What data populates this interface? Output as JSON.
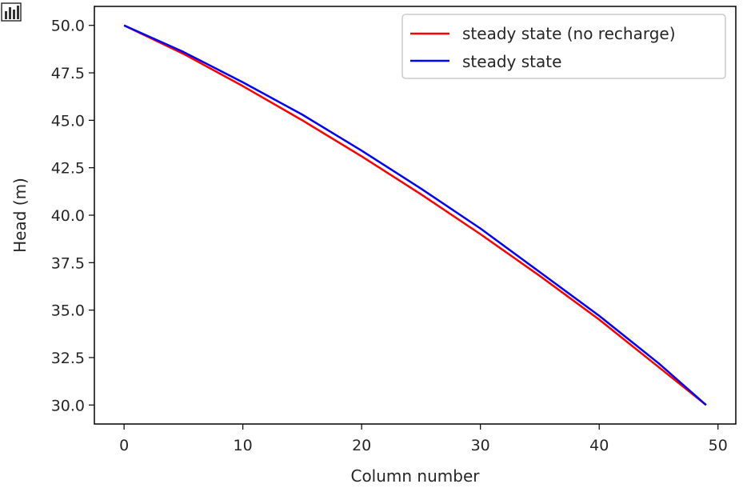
{
  "toolbar": {
    "icon": "bar-chart-icon"
  },
  "chart_data": {
    "type": "line",
    "title": "",
    "xlabel": "Column number",
    "ylabel": "Head (m)",
    "xlim": [
      -2.5,
      51.5
    ],
    "ylim": [
      29.0,
      51.0
    ],
    "xticks": [
      0,
      10,
      20,
      30,
      40,
      50
    ],
    "yticks": [
      30.0,
      32.5,
      35.0,
      37.5,
      40.0,
      42.5,
      45.0,
      47.5,
      50.0
    ],
    "xtick_labels": [
      "0",
      "10",
      "20",
      "30",
      "40",
      "50"
    ],
    "ytick_labels": [
      "30.0",
      "32.5",
      "35.0",
      "37.5",
      "40.0",
      "42.5",
      "45.0",
      "47.5",
      "50.0"
    ],
    "grid": false,
    "legend_position": "upper right",
    "x": [
      0,
      5,
      10,
      15,
      20,
      25,
      30,
      35,
      40,
      45,
      49
    ],
    "series": [
      {
        "name": "steady state (no recharge)",
        "color": "#ff0000",
        "values": [
          50.0,
          48.5,
          46.8,
          45.0,
          43.1,
          41.1,
          39.0,
          36.8,
          34.5,
          32.0,
          30.0
        ]
      },
      {
        "name": "steady state",
        "color": "#0000ff",
        "values": [
          50.0,
          48.6,
          47.0,
          45.3,
          43.4,
          41.4,
          39.3,
          37.0,
          34.7,
          32.2,
          30.0
        ]
      }
    ]
  }
}
